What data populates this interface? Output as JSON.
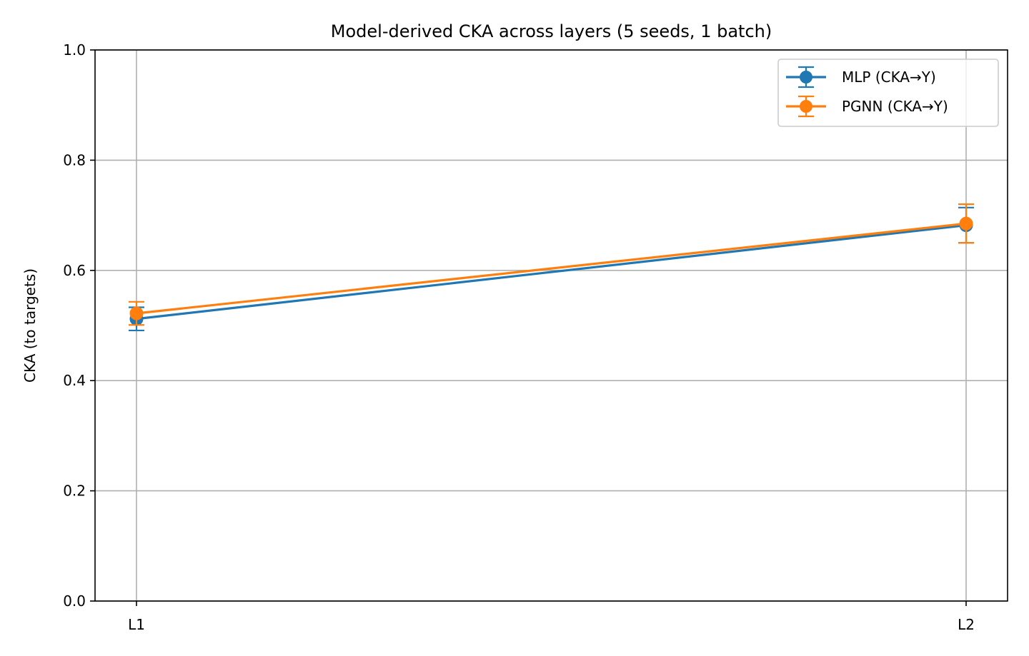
{
  "chart_data": {
    "type": "line",
    "title": "Model-derived CKA across layers (5 seeds, 1 batch)",
    "xlabel": "",
    "ylabel": "CKA (to targets)",
    "categories": [
      "L1",
      "L2"
    ],
    "ylim": [
      0,
      1.0
    ],
    "yticks": [
      "0.0",
      "0.2",
      "0.4",
      "0.6",
      "0.8",
      "1.0"
    ],
    "grid": true,
    "legend_position": "top-right",
    "series": [
      {
        "name": "MLP (CKA→Y)",
        "color": "#1f77b4",
        "values": [
          0.512,
          0.682
        ],
        "errors": [
          0.021,
          0.032
        ]
      },
      {
        "name": "PGNN (CKA→Y)",
        "color": "#ff7f0e",
        "values": [
          0.522,
          0.685
        ],
        "errors": [
          0.021,
          0.035
        ]
      }
    ]
  }
}
